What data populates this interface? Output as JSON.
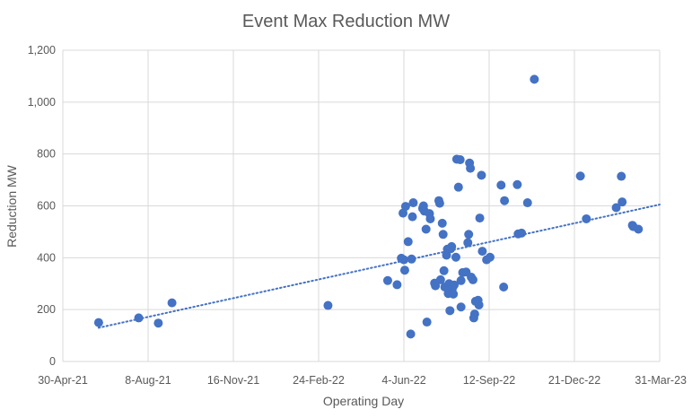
{
  "chart_data": {
    "type": "scatter",
    "title": "Event Max Reduction MW",
    "xlabel": "Operating Day",
    "ylabel": "Reduction MW",
    "x_is_date": true,
    "xlim": [
      "2021-04-30",
      "2023-03-31"
    ],
    "x_ticks": [
      "2021-04-30",
      "2021-08-08",
      "2021-11-16",
      "2022-02-24",
      "2022-06-04",
      "2022-09-12",
      "2022-12-21",
      "2023-03-31"
    ],
    "x_tick_labels": [
      "30-Apr-21",
      "8-Aug-21",
      "16-Nov-21",
      "24-Feb-22",
      "4-Jun-22",
      "12-Sep-22",
      "21-Dec-22",
      "31-Mar-23"
    ],
    "ylim": [
      0,
      1200
    ],
    "y_ticks": [
      0,
      200,
      400,
      600,
      800,
      1000,
      1200
    ],
    "y_tick_labels": [
      "0",
      "200",
      "400",
      "600",
      "800",
      "1,000",
      "1,200"
    ],
    "grid": true,
    "colors": {
      "point": "#4472c4",
      "trend": "#4472c4",
      "grid": "#d9d9d9"
    },
    "series": [
      {
        "name": "Event Max Reduction MW",
        "points": [
          [
            "2021-06-11",
            150
          ],
          [
            "2021-07-28",
            168
          ],
          [
            "2021-08-20",
            148
          ],
          [
            "2021-09-05",
            226
          ],
          [
            "2022-03-07",
            216
          ],
          [
            "2022-05-16",
            312
          ],
          [
            "2022-05-27",
            296
          ],
          [
            "2022-06-01",
            398
          ],
          [
            "2022-06-03",
            572
          ],
          [
            "2022-06-04",
            392
          ],
          [
            "2022-06-05",
            352
          ],
          [
            "2022-06-06",
            598
          ],
          [
            "2022-06-09",
            462
          ],
          [
            "2022-06-12",
            106
          ],
          [
            "2022-06-13",
            395
          ],
          [
            "2022-06-14",
            558
          ],
          [
            "2022-06-15",
            612
          ],
          [
            "2022-06-26",
            590
          ],
          [
            "2022-06-27",
            600
          ],
          [
            "2022-06-28",
            580
          ],
          [
            "2022-06-30",
            510
          ],
          [
            "2022-07-01",
            152
          ],
          [
            "2022-07-04",
            570
          ],
          [
            "2022-07-05",
            550
          ],
          [
            "2022-07-10",
            302
          ],
          [
            "2022-07-11",
            292
          ],
          [
            "2022-07-15",
            620
          ],
          [
            "2022-07-16",
            610
          ],
          [
            "2022-07-17",
            315
          ],
          [
            "2022-07-19",
            533
          ],
          [
            "2022-07-20",
            490
          ],
          [
            "2022-07-21",
            350
          ],
          [
            "2022-07-22",
            287
          ],
          [
            "2022-07-24",
            410
          ],
          [
            "2022-07-25",
            433
          ],
          [
            "2022-07-26",
            262
          ],
          [
            "2022-07-27",
            300
          ],
          [
            "2022-07-28",
            196
          ],
          [
            "2022-07-29",
            435
          ],
          [
            "2022-07-30",
            443
          ],
          [
            "2022-07-31",
            283
          ],
          [
            "2022-08-01",
            260
          ],
          [
            "2022-08-02",
            295
          ],
          [
            "2022-08-04",
            402
          ],
          [
            "2022-08-05",
            780
          ],
          [
            "2022-08-07",
            672
          ],
          [
            "2022-08-09",
            778
          ],
          [
            "2022-08-10",
            312
          ],
          [
            "2022-08-10",
            210
          ],
          [
            "2022-08-12",
            343
          ],
          [
            "2022-08-16",
            345
          ],
          [
            "2022-08-18",
            458
          ],
          [
            "2022-08-19",
            490
          ],
          [
            "2022-08-20",
            765
          ],
          [
            "2022-08-21",
            745
          ],
          [
            "2022-08-22",
            325
          ],
          [
            "2022-08-24",
            315
          ],
          [
            "2022-08-25",
            168
          ],
          [
            "2022-08-26",
            183
          ],
          [
            "2022-08-27",
            232
          ],
          [
            "2022-08-30",
            236
          ],
          [
            "2022-08-31",
            218
          ],
          [
            "2022-09-01",
            553
          ],
          [
            "2022-09-03",
            718
          ],
          [
            "2022-09-04",
            425
          ],
          [
            "2022-09-09",
            392
          ],
          [
            "2022-09-13",
            402
          ],
          [
            "2022-09-26",
            680
          ],
          [
            "2022-09-29",
            287
          ],
          [
            "2022-09-30",
            620
          ],
          [
            "2022-10-15",
            682
          ],
          [
            "2022-10-16",
            492
          ],
          [
            "2022-10-20",
            495
          ],
          [
            "2022-10-27",
            612
          ],
          [
            "2022-11-04",
            1088
          ],
          [
            "2022-12-28",
            715
          ],
          [
            "2023-01-04",
            550
          ],
          [
            "2023-02-08",
            593
          ],
          [
            "2023-02-14",
            714
          ],
          [
            "2023-02-15",
            615
          ],
          [
            "2023-02-27",
            525
          ],
          [
            "2023-02-28",
            520
          ],
          [
            "2023-03-06",
            510
          ]
        ]
      }
    ],
    "trendline": {
      "style": "dotted",
      "start": [
        "2021-06-11",
        130
      ],
      "end": [
        "2023-03-31",
        605
      ]
    }
  }
}
